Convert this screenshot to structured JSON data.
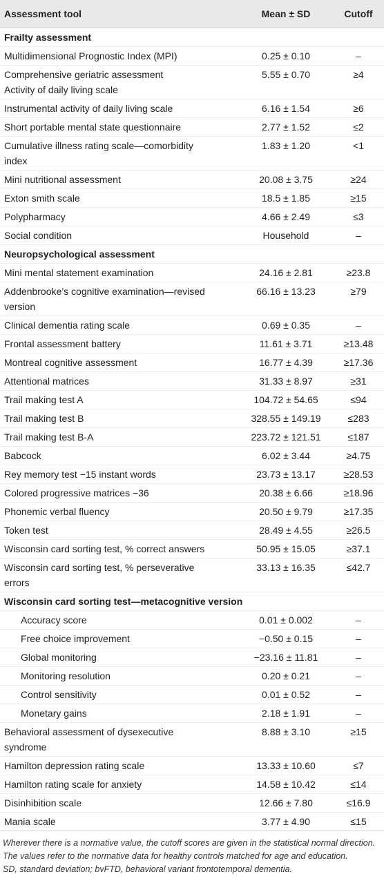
{
  "table": {
    "header": [
      "Assessment tool",
      "Mean ± SD",
      "Cutoff"
    ],
    "sections": [
      {
        "title": "Frailty assessment",
        "rows": [
          [
            "Multidimensional Prognostic Index (MPI)",
            "0.25 ± 0.10",
            "–"
          ],
          [
            "Comprehensive geriatric assessment\nActivity of daily living scale",
            "5.55 ± 0.70",
            "≥4"
          ],
          [
            "Instrumental activity of daily living scale",
            "6.16 ± 1.54",
            "≥6"
          ],
          [
            "Short portable mental state questionnaire",
            "2.77 ± 1.52",
            "≤2"
          ],
          [
            "Cumulative illness rating scale—comorbidity\nindex",
            "1.83 ± 1.20",
            "<1"
          ],
          [
            "Mini nutritional assessment",
            "20.08 ± 3.75",
            "≥24"
          ],
          [
            "Exton smith scale",
            "18.5 ± 1.85",
            "≥15"
          ],
          [
            "Polypharmacy",
            "4.66 ± 2.49",
            "≤3"
          ],
          [
            "Social condition",
            "Household",
            "–"
          ]
        ]
      },
      {
        "title": "Neuropsychological assessment",
        "rows": [
          [
            "Mini mental statement examination",
            "24.16 ± 2.81",
            "≥23.8"
          ],
          [
            "Addenbrooke’s cognitive examination—revised\nversion",
            "66.16 ± 13.23",
            "≥79"
          ],
          [
            "Clinical dementia rating scale",
            "0.69 ± 0.35",
            "–"
          ],
          [
            "Frontal assessment battery",
            "11.61 ± 3.71",
            "≥13.48"
          ],
          [
            "Montreal cognitive assessment",
            "16.77 ± 4.39",
            "≥17.36"
          ],
          [
            "Attentional matrices",
            "31.33 ± 8.97",
            "≥31"
          ],
          [
            "Trail making test A",
            "104.72 ± 54.65",
            "≤94"
          ],
          [
            "Trail making test B",
            "328.55 ± 149.19",
            "≤283"
          ],
          [
            "Trail making test B-A",
            "223.72 ± 121.51",
            "≤187"
          ],
          [
            "Babcock",
            "6.02 ± 3.44",
            "≥4.75"
          ],
          [
            "Rey memory test −15 instant words",
            "23.73 ± 13.17",
            "≥28.53"
          ],
          [
            "Colored progressive matrices −36",
            "20.38 ± 6.66",
            "≥18.96"
          ],
          [
            "Phonemic verbal fluency",
            "20.50 ± 9.79",
            "≥17.35"
          ],
          [
            "Token test",
            "28.49 ± 4.55",
            "≥26.5"
          ],
          [
            "Wisconsin card sorting test, % correct answers",
            "50.95 ± 15.05",
            "≥37.1"
          ],
          [
            "Wisconsin card sorting test, % perseverative\nerrors",
            "33.13 ± 16.35",
            "≤42.7"
          ],
          {
            "title": "Wisconsin card sorting test—metacognitive version",
            "rows": [
              [
                "Accuracy score",
                "0.01 ± 0.002",
                "–"
              ],
              [
                "Free choice improvement",
                "−0.50 ± 0.15",
                "–"
              ],
              [
                "Global monitoring",
                "−23.16 ± 11.81",
                "–"
              ],
              [
                "Monitoring resolution",
                "0.20 ± 0.21",
                "–"
              ],
              [
                "Control sensitivity",
                "0.01 ± 0.52",
                "–"
              ],
              [
                "Monetary gains",
                "2.18 ± 1.91",
                "–"
              ]
            ]
          },
          [
            "Behavioral assessment of dysexecutive\nsyndrome",
            "8.88 ± 3.10",
            "≥15"
          ],
          [
            "Hamilton depression rating scale",
            "13.33 ± 10.60",
            "≤7"
          ],
          [
            "Hamilton rating scale for anxiety",
            "14.58 ± 10.42",
            "≤14"
          ],
          [
            "Disinhibition scale",
            "12.66 ± 7.80",
            "≤16.9"
          ],
          [
            "Mania scale",
            "3.77 ± 4.90",
            "≤15"
          ]
        ]
      }
    ],
    "notes": [
      "Wherever there is a normative value, the cutoff scores are given in the statistical normal direction. The values refer to the normative data for healthy controls matched for age and education.",
      "SD, standard deviation; bvFTD, behavioral variant frontotemporal dementia."
    ]
  }
}
